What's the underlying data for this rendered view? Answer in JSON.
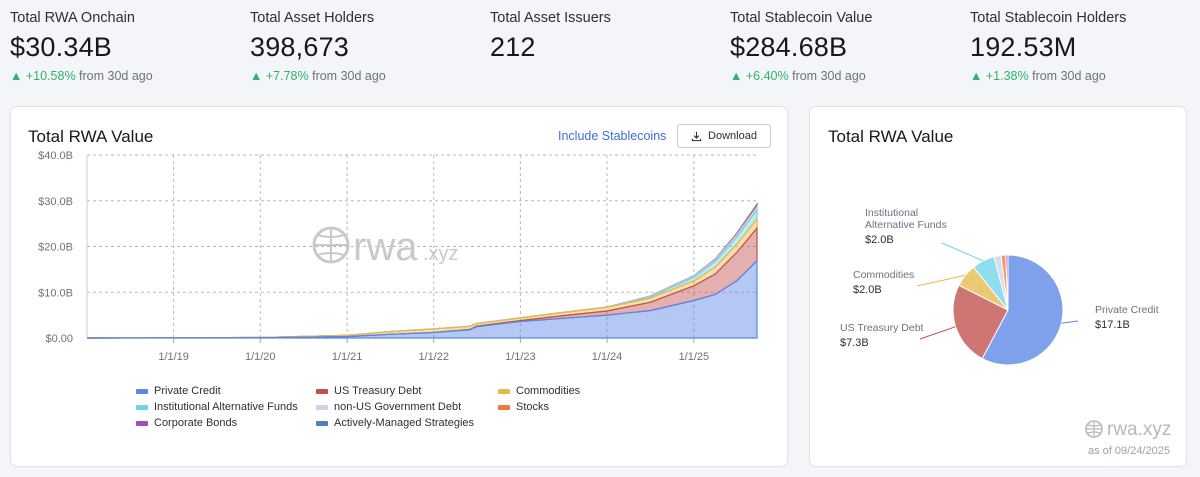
{
  "stats": [
    {
      "title": "Total RWA Onchain",
      "value": "$30.34B",
      "change": "+10.58%",
      "suffix": "from 30d ago"
    },
    {
      "title": "Total Asset Holders",
      "value": "398,673",
      "change": "+7.78%",
      "suffix": "from 30d ago"
    },
    {
      "title": "Total Asset Issuers",
      "value": "212",
      "change": "",
      "suffix": ""
    },
    {
      "title": "Total Stablecoin Value",
      "value": "$284.68B",
      "change": "+6.40%",
      "suffix": "from 30d ago"
    },
    {
      "title": "Total Stablecoin Holders",
      "value": "192.53M",
      "change": "+1.38%",
      "suffix": "from 30d ago"
    }
  ],
  "left_card": {
    "title": "Total RWA Value",
    "include_link": "Include Stablecoins",
    "download_label": "Download",
    "watermark": "rwa.xyz"
  },
  "right_card": {
    "title": "Total RWA Value",
    "watermark": "rwa.xyz",
    "as_of": "as of 09/24/2025"
  },
  "colors": {
    "private_credit": "#5b86e5",
    "us_treasury": "#c0504d",
    "commodities": "#e8b84a",
    "institutional_funds": "#6fd3e8",
    "non_us_gov": "#c9d6e6",
    "stocks": "#f07a3c",
    "corporate_bonds": "#a14fc0",
    "managed": "#4d7fb8",
    "positive": "#2fb36b"
  },
  "chart_data": [
    {
      "type": "area",
      "stacked": true,
      "ylim": [
        0,
        40
      ],
      "y_unit": "B",
      "yticks": [
        "$0.00",
        "$10.0B",
        "$20.0B",
        "$30.0B",
        "$40.0B"
      ],
      "xticks": [
        "1/1/19",
        "1/1/20",
        "1/1/21",
        "1/1/22",
        "1/1/23",
        "1/1/24",
        "1/1/25"
      ],
      "grid": true,
      "legend_position": "bottom",
      "x": [
        "2018-01",
        "2019-01",
        "2020-01",
        "2021-01",
        "2021-07",
        "2022-01",
        "2022-06",
        "2022-07",
        "2023-01",
        "2023-07",
        "2024-01",
        "2024-07",
        "2025-01",
        "2025-04",
        "2025-07",
        "2025-09"
      ],
      "series": [
        {
          "name": "Private Credit",
          "values": [
            0,
            0.02,
            0.05,
            0.3,
            0.8,
            1.2,
            1.8,
            2.5,
            3.6,
            4.3,
            5.0,
            6.0,
            8.2,
            9.5,
            12.5,
            16.9
          ]
        },
        {
          "name": "US Treasury Debt",
          "values": [
            0,
            0,
            0,
            0,
            0,
            0,
            0.05,
            0.1,
            0.2,
            0.6,
            0.9,
            1.8,
            3.2,
            4.5,
            6.2,
            7.1
          ]
        },
        {
          "name": "Commodities",
          "values": [
            0,
            0.02,
            0.05,
            0.3,
            0.6,
            0.8,
            0.7,
            0.6,
            0.6,
            0.7,
            0.8,
            0.9,
            1.1,
            1.5,
            1.8,
            2.0
          ]
        },
        {
          "name": "Institutional Alternative Funds",
          "values": [
            0,
            0,
            0,
            0,
            0,
            0,
            0,
            0,
            0,
            0,
            0.05,
            0.3,
            0.8,
            1.2,
            1.6,
            2.0
          ]
        },
        {
          "name": "non-US Government Debt",
          "values": [
            0,
            0,
            0,
            0,
            0,
            0,
            0,
            0,
            0,
            0,
            0,
            0.1,
            0.2,
            0.3,
            0.4,
            0.5
          ]
        },
        {
          "name": "Stocks",
          "values": [
            0,
            0,
            0,
            0,
            0,
            0,
            0,
            0,
            0,
            0,
            0,
            0.02,
            0.05,
            0.1,
            0.2,
            0.4
          ]
        },
        {
          "name": "Corporate Bonds",
          "values": [
            0,
            0,
            0,
            0,
            0,
            0,
            0,
            0,
            0,
            0,
            0,
            0.02,
            0.05,
            0.08,
            0.1,
            0.15
          ]
        },
        {
          "name": "Actively-Managed Strategies",
          "values": [
            0,
            0,
            0,
            0,
            0,
            0,
            0,
            0,
            0,
            0,
            0,
            0,
            0.02,
            0.05,
            0.1,
            0.2
          ]
        }
      ]
    },
    {
      "type": "pie",
      "slices": [
        {
          "name": "Private Credit",
          "value": 17.1,
          "label": "$17.1B"
        },
        {
          "name": "US Treasury Debt",
          "value": 7.3,
          "label": "$7.3B"
        },
        {
          "name": "Commodities",
          "value": 2.0,
          "label": "$2.0B"
        },
        {
          "name": "Institutional Alternative Funds",
          "value": 2.0,
          "label": "$2.0B"
        },
        {
          "name": "non-US Government Debt",
          "value": 0.6,
          "label": ""
        },
        {
          "name": "Stocks",
          "value": 0.4,
          "label": ""
        },
        {
          "name": "Corporate Bonds",
          "value": 0.2,
          "label": ""
        }
      ],
      "pie_labels": [
        {
          "slice": 0,
          "name_lines": [
            "Private Credit"
          ],
          "value": "$17.1B"
        },
        {
          "slice": 1,
          "name_lines": [
            "US Treasury Debt"
          ],
          "value": "$7.3B"
        },
        {
          "slice": 2,
          "name_lines": [
            "Commodities"
          ],
          "value": "$2.0B"
        },
        {
          "slice": 3,
          "name_lines": [
            "Institutional",
            "Alternative Funds"
          ],
          "value": "$2.0B"
        }
      ]
    }
  ]
}
